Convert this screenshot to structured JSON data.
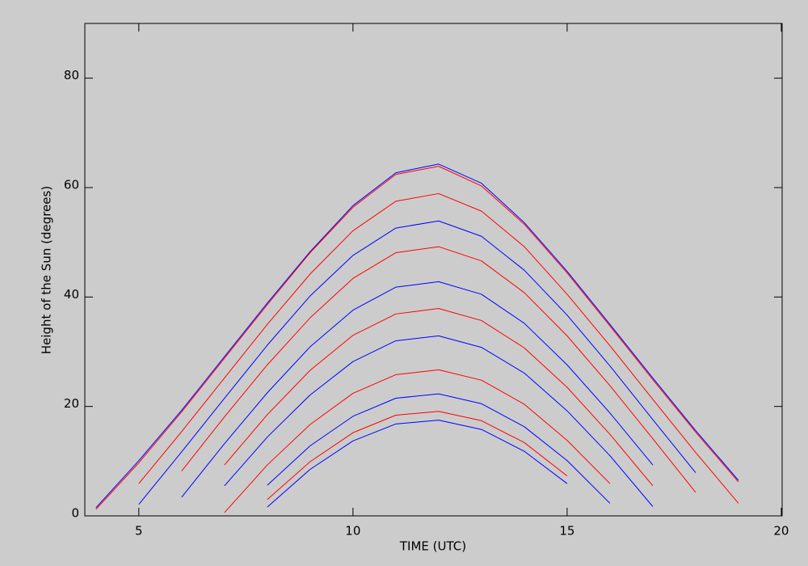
{
  "chart_data": {
    "type": "line",
    "xlabel": "TIME (UTC)",
    "ylabel": "Height of the Sun (degrees)",
    "x": [
      4,
      5,
      6,
      7,
      8,
      9,
      10,
      11,
      12,
      13,
      14,
      15,
      16,
      17,
      18,
      19,
      20
    ],
    "xlim": [
      3.74,
      20.02
    ],
    "xticks": [
      5,
      10,
      15,
      20
    ],
    "ylim": [
      0,
      90
    ],
    "yticks": [
      0,
      20,
      40,
      60,
      80
    ],
    "grid": false,
    "series": [
      {
        "color": "#0000ff",
        "values": [
          1.5,
          10.1,
          19.3,
          29.1,
          38.9,
          48.3,
          56.7,
          62.7,
          64.3,
          60.8,
          53.6,
          44.7,
          35.0,
          25.2,
          15.6,
          6.5,
          null
        ]
      },
      {
        "color": "#ff0000",
        "values": [
          1.2,
          9.7,
          19.0,
          28.8,
          38.6,
          48.1,
          56.4,
          62.4,
          63.9,
          60.3,
          53.3,
          44.4,
          34.7,
          24.9,
          15.3,
          6.2,
          null
        ]
      },
      {
        "color": "#ff0000",
        "values": [
          null,
          5.9,
          15.4,
          25.2,
          35.0,
          44.2,
          52.1,
          57.5,
          58.9,
          55.7,
          49.2,
          40.5,
          31.1,
          21.3,
          11.6,
          2.3,
          null
        ]
      },
      {
        "color": "#0000ff",
        "values": [
          null,
          2.1,
          11.7,
          21.5,
          31.2,
          40.2,
          47.6,
          52.6,
          53.9,
          51.1,
          44.9,
          36.7,
          27.4,
          17.6,
          7.9,
          null,
          null
        ]
      },
      {
        "color": "#ff0000",
        "values": [
          null,
          null,
          8.2,
          18.1,
          27.6,
          36.2,
          43.4,
          48.1,
          49.2,
          46.6,
          40.8,
          32.9,
          23.8,
          14.1,
          4.3,
          null,
          null
        ]
      },
      {
        "color": "#0000ff",
        "values": [
          null,
          null,
          3.4,
          13.2,
          22.5,
          30.9,
          37.6,
          41.8,
          42.8,
          40.5,
          35.2,
          27.6,
          18.8,
          9.3,
          null,
          null,
          null
        ]
      },
      {
        "color": "#ff0000",
        "values": [
          null,
          null,
          null,
          9.3,
          18.5,
          26.6,
          33.0,
          36.9,
          37.9,
          35.7,
          30.7,
          23.5,
          14.9,
          5.5,
          null,
          null,
          null
        ]
      },
      {
        "color": "#0000ff",
        "values": [
          null,
          null,
          null,
          5.5,
          14.4,
          22.1,
          28.2,
          32.0,
          32.9,
          30.8,
          26.1,
          19.2,
          11.0,
          1.7,
          null,
          null,
          null
        ]
      },
      {
        "color": "#ff0000",
        "values": [
          null,
          null,
          null,
          0.6,
          9.3,
          16.7,
          22.4,
          25.8,
          26.7,
          24.8,
          20.4,
          13.8,
          5.9,
          null,
          null,
          null,
          null
        ]
      },
      {
        "color": "#0000ff",
        "values": [
          null,
          null,
          null,
          null,
          5.6,
          12.8,
          18.2,
          21.5,
          22.3,
          20.5,
          16.3,
          10.1,
          2.3,
          null,
          null,
          null,
          null
        ]
      },
      {
        "color": "#ff0000",
        "values": [
          null,
          null,
          null,
          null,
          3.0,
          9.9,
          15.2,
          18.4,
          19.1,
          17.4,
          13.4,
          7.3,
          null,
          null,
          null,
          null,
          null
        ]
      },
      {
        "color": "#0000ff",
        "values": [
          null,
          null,
          null,
          null,
          1.6,
          8.5,
          13.7,
          16.8,
          17.5,
          15.8,
          11.8,
          5.9,
          null,
          null,
          null,
          null,
          null
        ]
      }
    ]
  }
}
